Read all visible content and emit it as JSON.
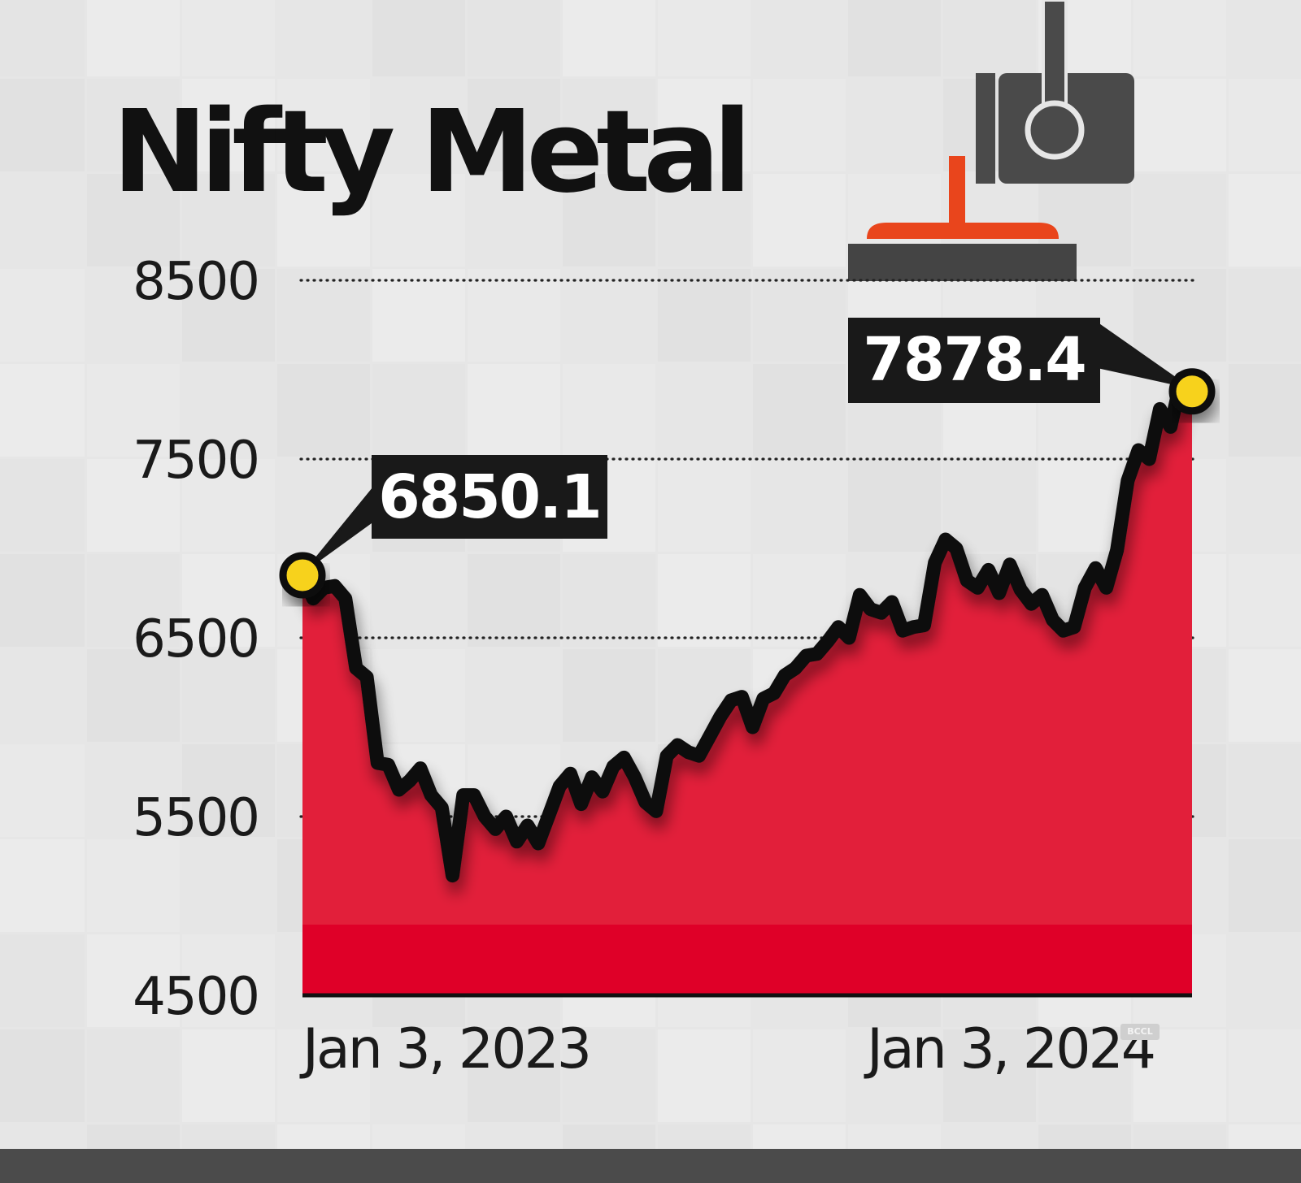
{
  "chart_data": {
    "type": "area",
    "title": "Nifty Metal",
    "ylim": [
      4500,
      8500
    ],
    "yticks": [
      8500,
      7500,
      6500,
      5500,
      4500
    ],
    "x_tick_labels": [
      "Jan 3, 2023",
      "Jan 3, 2024"
    ],
    "grid": "dotted horizontal",
    "annotations": [
      {
        "label": "6850.1",
        "x": "Jan 3, 2023",
        "y": 6850.1
      },
      {
        "label": "7878.4",
        "x": "Jan 3, 2024",
        "y": 7878.4
      }
    ],
    "series": [
      {
        "x_start": "2023-01-03",
        "x_end": "2024-01-03",
        "values": [
          6850.1,
          6720,
          6780,
          6790,
          6720,
          6330,
          6280,
          5800,
          5790,
          5650,
          5700,
          5770,
          5620,
          5550,
          5170,
          5620,
          5620,
          5500,
          5430,
          5500,
          5360,
          5450,
          5350,
          5510,
          5670,
          5740,
          5570,
          5720,
          5640,
          5780,
          5830,
          5720,
          5580,
          5530,
          5840,
          5900,
          5860,
          5840,
          5950,
          6060,
          6150,
          6170,
          6000,
          6160,
          6190,
          6290,
          6330,
          6400,
          6410,
          6480,
          6560,
          6500,
          6740,
          6660,
          6640,
          6700,
          6540,
          6560,
          6570,
          6920,
          7050,
          7000,
          6820,
          6780,
          6880,
          6750,
          6910,
          6770,
          6690,
          6740,
          6600,
          6540,
          6560,
          6780,
          6890,
          6780,
          6990,
          7380,
          7550,
          7500,
          7780,
          7680,
          7950,
          7878.4
        ]
      }
    ],
    "colors": {
      "area": "#e21f3a",
      "area_band": "#df0028",
      "line": "#111111",
      "marker": "#f7d21e",
      "callout_bg": "#191919"
    }
  },
  "watermark": "BCCL",
  "icon": "steel-ladle-icon"
}
